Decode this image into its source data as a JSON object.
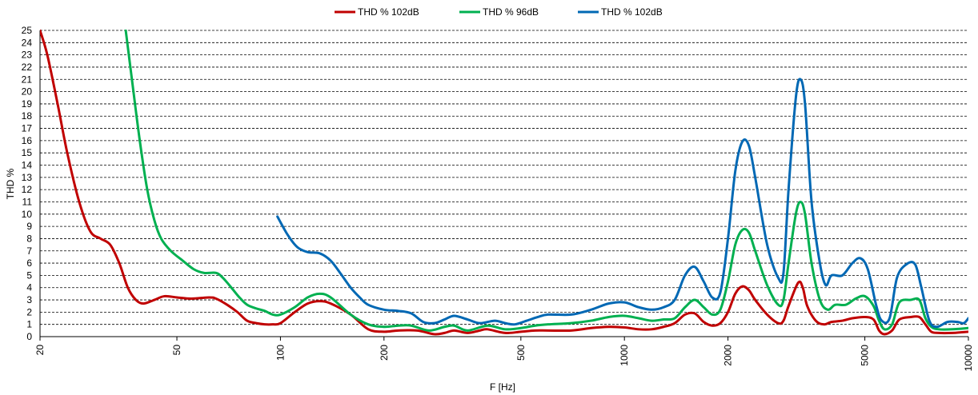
{
  "chart_data": {
    "type": "line",
    "xlabel": "F [Hz]",
    "ylabel": "THD %",
    "xscale": "log",
    "xlim": [
      20,
      10000
    ],
    "ylim": [
      0,
      25
    ],
    "x_ticks": [
      20,
      50,
      100,
      200,
      500,
      1000,
      2000,
      5000,
      10000
    ],
    "x_tick_labels": [
      "20",
      "50",
      "100",
      "200",
      "500",
      "1000",
      "2000",
      "5000",
      "10000"
    ],
    "y_ticks": [
      0,
      1,
      2,
      3,
      4,
      5,
      6,
      7,
      8,
      9,
      10,
      11,
      12,
      13,
      14,
      15,
      16,
      17,
      18,
      19,
      20,
      21,
      22,
      23,
      24,
      25
    ],
    "y_tick_labels": [
      "0",
      "1",
      "2",
      "3",
      "4",
      "5",
      "6",
      "7",
      "8",
      "9",
      "10",
      "11",
      "12",
      "13",
      "14",
      "15",
      "16",
      "17",
      "18",
      "19",
      "20",
      "21",
      "22",
      "23",
      "24",
      "25"
    ],
    "grid": "horizontal dashed",
    "legend_position": "top",
    "series": [
      {
        "name": "THD % 102dB",
        "color": "#c00000",
        "points": [
          [
            20,
            25
          ],
          [
            21,
            23
          ],
          [
            22.5,
            19
          ],
          [
            24,
            15
          ],
          [
            26,
            11
          ],
          [
            28,
            8.6
          ],
          [
            30,
            8
          ],
          [
            32,
            7.5
          ],
          [
            34,
            6
          ],
          [
            36,
            4
          ],
          [
            38,
            3
          ],
          [
            40,
            2.7
          ],
          [
            43,
            3
          ],
          [
            46,
            3.3
          ],
          [
            50,
            3.2
          ],
          [
            55,
            3.1
          ],
          [
            62,
            3.2
          ],
          [
            65,
            3.1
          ],
          [
            70,
            2.6
          ],
          [
            75,
            2
          ],
          [
            80,
            1.3
          ],
          [
            85,
            1.1
          ],
          [
            90,
            1
          ],
          [
            95,
            1
          ],
          [
            100,
            1.1
          ],
          [
            110,
            2
          ],
          [
            120,
            2.7
          ],
          [
            130,
            2.9
          ],
          [
            140,
            2.7
          ],
          [
            160,
            1.8
          ],
          [
            180,
            0.6
          ],
          [
            200,
            0.4
          ],
          [
            220,
            0.5
          ],
          [
            250,
            0.5
          ],
          [
            280,
            0.2
          ],
          [
            300,
            0.3
          ],
          [
            320,
            0.5
          ],
          [
            350,
            0.3
          ],
          [
            380,
            0.5
          ],
          [
            400,
            0.6
          ],
          [
            450,
            0.3
          ],
          [
            500,
            0.4
          ],
          [
            550,
            0.5
          ],
          [
            600,
            0.5
          ],
          [
            700,
            0.5
          ],
          [
            800,
            0.7
          ],
          [
            900,
            0.8
          ],
          [
            1000,
            0.75
          ],
          [
            1100,
            0.6
          ],
          [
            1200,
            0.6
          ],
          [
            1300,
            0.8
          ],
          [
            1400,
            1.1
          ],
          [
            1500,
            1.8
          ],
          [
            1600,
            1.9
          ],
          [
            1700,
            1.2
          ],
          [
            1800,
            0.9
          ],
          [
            1900,
            1.1
          ],
          [
            2000,
            2
          ],
          [
            2100,
            3.5
          ],
          [
            2200,
            4.1
          ],
          [
            2300,
            3.8
          ],
          [
            2400,
            3
          ],
          [
            2600,
            1.8
          ],
          [
            2800,
            1.1
          ],
          [
            2900,
            1.3
          ],
          [
            3000,
            2.5
          ],
          [
            3200,
            4.4
          ],
          [
            3300,
            4
          ],
          [
            3400,
            2.5
          ],
          [
            3600,
            1.3
          ],
          [
            3800,
            1
          ],
          [
            4000,
            1.2
          ],
          [
            4300,
            1.3
          ],
          [
            4600,
            1.5
          ],
          [
            5000,
            1.6
          ],
          [
            5300,
            1.4
          ],
          [
            5500,
            0.5
          ],
          [
            5700,
            0.2
          ],
          [
            6000,
            0.5
          ],
          [
            6300,
            1.4
          ],
          [
            6800,
            1.6
          ],
          [
            7200,
            1.6
          ],
          [
            7500,
            1
          ],
          [
            7800,
            0.4
          ],
          [
            8200,
            0.3
          ],
          [
            9000,
            0.3
          ],
          [
            9500,
            0.35
          ],
          [
            10000,
            0.4
          ]
        ]
      },
      {
        "name": "THD % 96dB",
        "color": "#00b050",
        "points": [
          [
            35.5,
            25
          ],
          [
            37,
            21
          ],
          [
            39,
            16
          ],
          [
            41,
            12
          ],
          [
            43,
            9.5
          ],
          [
            45,
            8
          ],
          [
            48,
            7
          ],
          [
            52,
            6.2
          ],
          [
            56,
            5.5
          ],
          [
            60,
            5.2
          ],
          [
            65,
            5.2
          ],
          [
            68,
            4.8
          ],
          [
            72,
            4
          ],
          [
            76,
            3.2
          ],
          [
            80,
            2.6
          ],
          [
            85,
            2.3
          ],
          [
            90,
            2.1
          ],
          [
            95,
            1.8
          ],
          [
            100,
            1.8
          ],
          [
            110,
            2.4
          ],
          [
            120,
            3.2
          ],
          [
            130,
            3.5
          ],
          [
            140,
            3.2
          ],
          [
            160,
            1.8
          ],
          [
            180,
            1
          ],
          [
            200,
            0.8
          ],
          [
            220,
            0.9
          ],
          [
            240,
            0.9
          ],
          [
            270,
            0.5
          ],
          [
            300,
            0.8
          ],
          [
            320,
            0.9
          ],
          [
            350,
            0.5
          ],
          [
            400,
            0.9
          ],
          [
            450,
            0.6
          ],
          [
            500,
            0.7
          ],
          [
            550,
            0.9
          ],
          [
            600,
            1
          ],
          [
            700,
            1.1
          ],
          [
            800,
            1.3
          ],
          [
            900,
            1.6
          ],
          [
            1000,
            1.7
          ],
          [
            1100,
            1.5
          ],
          [
            1200,
            1.3
          ],
          [
            1300,
            1.4
          ],
          [
            1400,
            1.5
          ],
          [
            1500,
            2.4
          ],
          [
            1600,
            3
          ],
          [
            1700,
            2.4
          ],
          [
            1800,
            1.8
          ],
          [
            1900,
            2.2
          ],
          [
            2000,
            4.5
          ],
          [
            2100,
            7.5
          ],
          [
            2200,
            8.7
          ],
          [
            2300,
            8.5
          ],
          [
            2400,
            7
          ],
          [
            2600,
            4.2
          ],
          [
            2800,
            2.6
          ],
          [
            2900,
            3
          ],
          [
            3000,
            6
          ],
          [
            3150,
            10
          ],
          [
            3250,
            11
          ],
          [
            3350,
            10
          ],
          [
            3500,
            6
          ],
          [
            3700,
            3
          ],
          [
            3900,
            2.2
          ],
          [
            4100,
            2.6
          ],
          [
            4400,
            2.6
          ],
          [
            4700,
            3.1
          ],
          [
            5000,
            3.3
          ],
          [
            5300,
            2.5
          ],
          [
            5500,
            1.3
          ],
          [
            5700,
            0.6
          ],
          [
            6000,
            1
          ],
          [
            6300,
            2.8
          ],
          [
            6800,
            3
          ],
          [
            7200,
            3
          ],
          [
            7500,
            1.5
          ],
          [
            7800,
            0.8
          ],
          [
            8200,
            0.6
          ],
          [
            9000,
            0.6
          ],
          [
            10000,
            0.7
          ]
        ]
      },
      {
        "name": "THD % 102dB",
        "color": "#0068b4",
        "points": [
          [
            98,
            9.8
          ],
          [
            105,
            8.3
          ],
          [
            112,
            7.3
          ],
          [
            120,
            6.9
          ],
          [
            130,
            6.8
          ],
          [
            140,
            6.2
          ],
          [
            150,
            5.1
          ],
          [
            160,
            4
          ],
          [
            170,
            3.2
          ],
          [
            180,
            2.6
          ],
          [
            200,
            2.2
          ],
          [
            220,
            2.1
          ],
          [
            240,
            1.9
          ],
          [
            260,
            1.2
          ],
          [
            280,
            1.1
          ],
          [
            300,
            1.4
          ],
          [
            320,
            1.7
          ],
          [
            350,
            1.4
          ],
          [
            380,
            1.1
          ],
          [
            420,
            1.3
          ],
          [
            450,
            1.1
          ],
          [
            480,
            1
          ],
          [
            520,
            1.3
          ],
          [
            560,
            1.6
          ],
          [
            600,
            1.8
          ],
          [
            700,
            1.8
          ],
          [
            800,
            2.2
          ],
          [
            900,
            2.7
          ],
          [
            1000,
            2.8
          ],
          [
            1100,
            2.4
          ],
          [
            1200,
            2.2
          ],
          [
            1300,
            2.4
          ],
          [
            1400,
            3
          ],
          [
            1500,
            5
          ],
          [
            1600,
            5.7
          ],
          [
            1700,
            4.5
          ],
          [
            1800,
            3.2
          ],
          [
            1900,
            3.6
          ],
          [
            2000,
            8
          ],
          [
            2100,
            13.5
          ],
          [
            2200,
            15.9
          ],
          [
            2300,
            15.6
          ],
          [
            2400,
            13
          ],
          [
            2600,
            7.5
          ],
          [
            2800,
            4.8
          ],
          [
            2900,
            5.2
          ],
          [
            3000,
            12
          ],
          [
            3150,
            19.5
          ],
          [
            3250,
            21
          ],
          [
            3350,
            19
          ],
          [
            3500,
            11
          ],
          [
            3700,
            6
          ],
          [
            3850,
            4.2
          ],
          [
            4000,
            5
          ],
          [
            4300,
            5
          ],
          [
            4600,
            6
          ],
          [
            4850,
            6.4
          ],
          [
            5100,
            5.5
          ],
          [
            5400,
            2.5
          ],
          [
            5600,
            1.3
          ],
          [
            5900,
            1.5
          ],
          [
            6200,
            4.8
          ],
          [
            6600,
            5.9
          ],
          [
            7000,
            5.9
          ],
          [
            7300,
            4
          ],
          [
            7700,
            1.3
          ],
          [
            8100,
            0.8
          ],
          [
            8700,
            1.2
          ],
          [
            9300,
            1.2
          ],
          [
            9700,
            1.1
          ],
          [
            10000,
            1.5
          ]
        ]
      }
    ]
  }
}
